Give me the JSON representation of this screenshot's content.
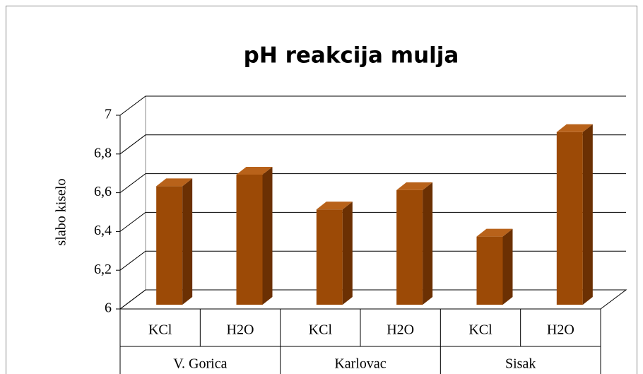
{
  "chart_data": {
    "type": "bar3d",
    "title": "pH reakcija mulja",
    "y_label": "slabo kiselo",
    "categories": [
      "KCl",
      "H2O",
      "KCl",
      "H2O",
      "KCl",
      "H2O"
    ],
    "groups": [
      "V. Gorica",
      "Karlovac",
      "Sisak"
    ],
    "values": [
      6.67,
      6.73,
      6.55,
      6.65,
      6.41,
      6.95
    ],
    "color": "#9c4a06",
    "ylim": [
      6,
      7
    ],
    "yticks": [
      6,
      {
        "value": 6.2,
        "label": "6,2"
      },
      {
        "value": 6.4,
        "label": "6,4"
      },
      {
        "value": 6.6,
        "label": "6,6"
      },
      {
        "value": 6.8,
        "label": "6,8"
      },
      7
    ],
    "grid": true
  }
}
